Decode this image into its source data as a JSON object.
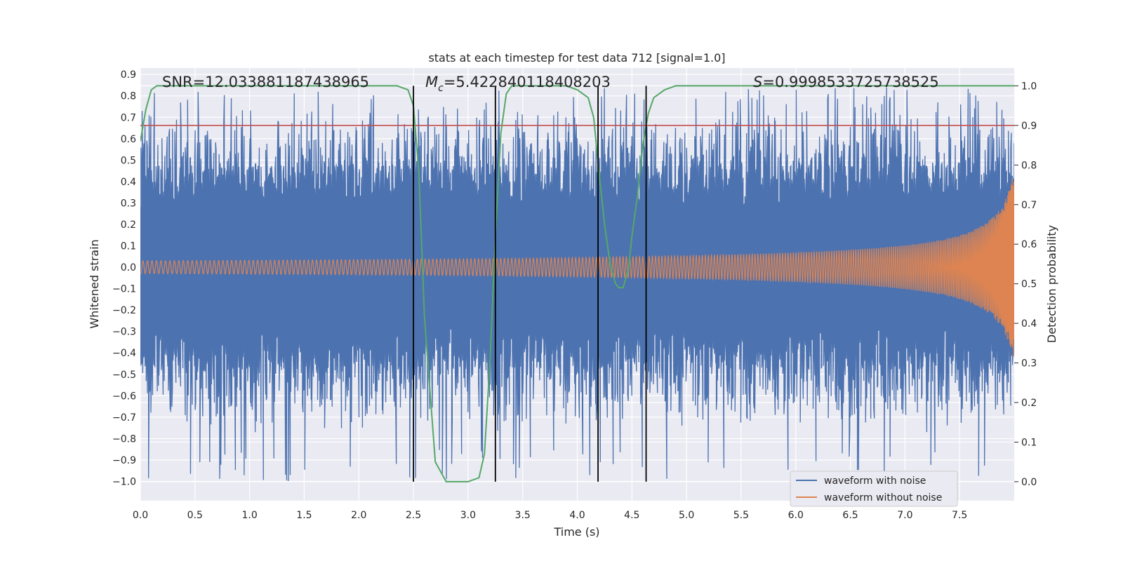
{
  "chart_data": {
    "type": "line",
    "title": "stats at each timestep for test data 712 [signal=1.0]",
    "xlabel": "Time (s)",
    "ylabel": "Whitened strain",
    "y2label": "Detection probability",
    "xlim": [
      0.0,
      8.0
    ],
    "ylim": [
      -1.09,
      0.93
    ],
    "y2lim": [
      -0.048,
      1.045
    ],
    "xticks": [
      "0.0",
      "0.5",
      "1.0",
      "1.5",
      "2.0",
      "2.5",
      "3.0",
      "3.5",
      "4.0",
      "4.5",
      "5.0",
      "5.5",
      "6.0",
      "6.5",
      "7.0",
      "7.5"
    ],
    "yticks": [
      "0.9",
      "0.8",
      "0.7",
      "0.6",
      "0.5",
      "0.4",
      "0.3",
      "0.2",
      "0.1",
      "0.0",
      "−0.1",
      "−0.2",
      "−0.3",
      "−0.4",
      "−0.5",
      "−0.6",
      "−0.7",
      "−0.8",
      "−0.9",
      "−1.0"
    ],
    "y2ticks": [
      "0.0",
      "0.1",
      "0.2",
      "0.3",
      "0.4",
      "0.5",
      "0.6",
      "0.7",
      "0.8",
      "0.9",
      "1.0"
    ],
    "annotations": {
      "snr": "SNR=12.033881187438965",
      "mc_symbol": "M",
      "mc_sub": "c",
      "mc_value": "=5.422840118408203",
      "s_symbol": "S",
      "s_value": "=0.9998533725738525"
    },
    "threshold": 0.9,
    "vertical_lines_s": [
      2.5,
      3.25,
      4.19,
      4.63
    ],
    "series": [
      {
        "name": "waveform with noise",
        "color": "#4c72b0",
        "envelope_peak_max": 0.84,
        "envelope_peak_min": -1.0
      },
      {
        "name": "waveform without noise",
        "color": "#dd8452",
        "amplitude_start": 0.03,
        "amplitude_end": 0.42,
        "cycles": 300
      },
      {
        "name": "detection probability",
        "color": "#55a868",
        "x": [
          0.0,
          0.05,
          0.1,
          0.15,
          0.3,
          0.5,
          1.0,
          1.5,
          2.0,
          2.35,
          2.45,
          2.5,
          2.55,
          2.6,
          2.7,
          2.8,
          2.85,
          3.0,
          3.1,
          3.15,
          3.2,
          3.25,
          3.3,
          3.35,
          3.4,
          3.5,
          3.7,
          3.9,
          4.0,
          4.1,
          4.15,
          4.2,
          4.25,
          4.3,
          4.35,
          4.38,
          4.42,
          4.47,
          4.5,
          4.55,
          4.6,
          4.65,
          4.7,
          4.8,
          4.9,
          5.0,
          6.0,
          7.0,
          8.0
        ],
        "y": [
          0.86,
          0.94,
          0.99,
          1.0,
          1.0,
          1.0,
          1.0,
          1.0,
          1.0,
          1.0,
          0.99,
          0.95,
          0.78,
          0.42,
          0.05,
          0.0,
          0.0,
          0.0,
          0.01,
          0.07,
          0.3,
          0.62,
          0.88,
          0.98,
          1.0,
          1.0,
          1.0,
          1.0,
          0.99,
          0.97,
          0.92,
          0.78,
          0.65,
          0.55,
          0.5,
          0.49,
          0.49,
          0.54,
          0.62,
          0.72,
          0.85,
          0.93,
          0.97,
          0.99,
          1.0,
          1.0,
          1.0,
          1.0,
          1.0
        ]
      },
      {
        "name": "threshold",
        "color": "#c44e52",
        "y": 0.9
      }
    ],
    "legend": [
      "waveform with noise",
      "waveform without noise"
    ],
    "legend_position": "lower-right",
    "grid": true
  }
}
